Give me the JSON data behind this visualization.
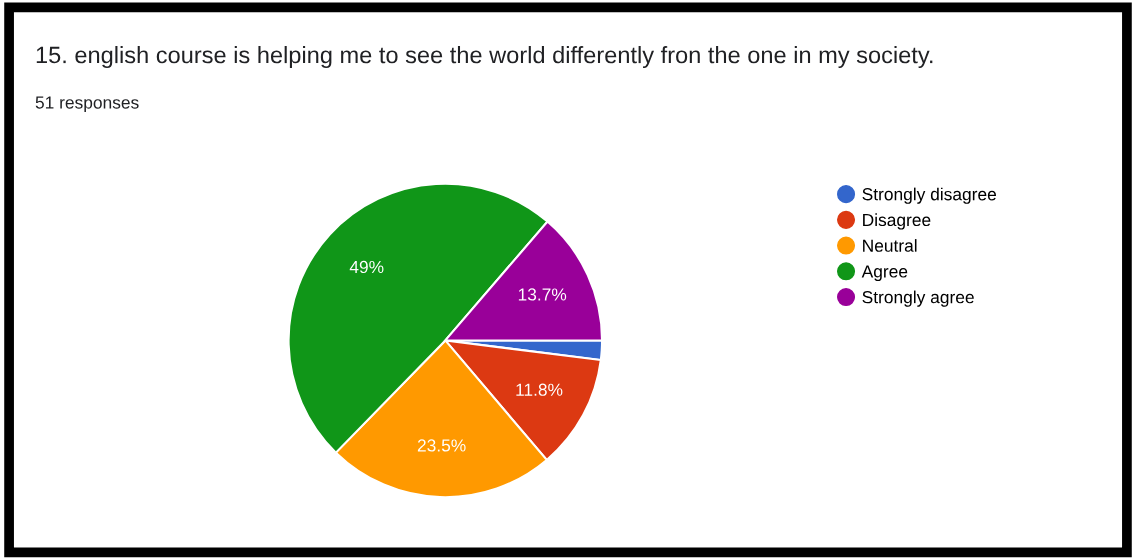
{
  "chart_data": {
    "type": "pie",
    "title": "15. english course is helping me to see the world differently fron the one in my society.",
    "subtitle": "51 responses",
    "categories": [
      "Strongly disagree",
      "Disagree",
      "Neutral",
      "Agree",
      "Strongly agree"
    ],
    "values": [
      2.0,
      11.8,
      23.5,
      49,
      13.7
    ],
    "colors": [
      "#3366cc",
      "#dc3912",
      "#ff9900",
      "#109618",
      "#990099"
    ],
    "value_labels": [
      null,
      "11.8%",
      "23.5%",
      "49%",
      "13.7%"
    ],
    "legend": "right"
  }
}
